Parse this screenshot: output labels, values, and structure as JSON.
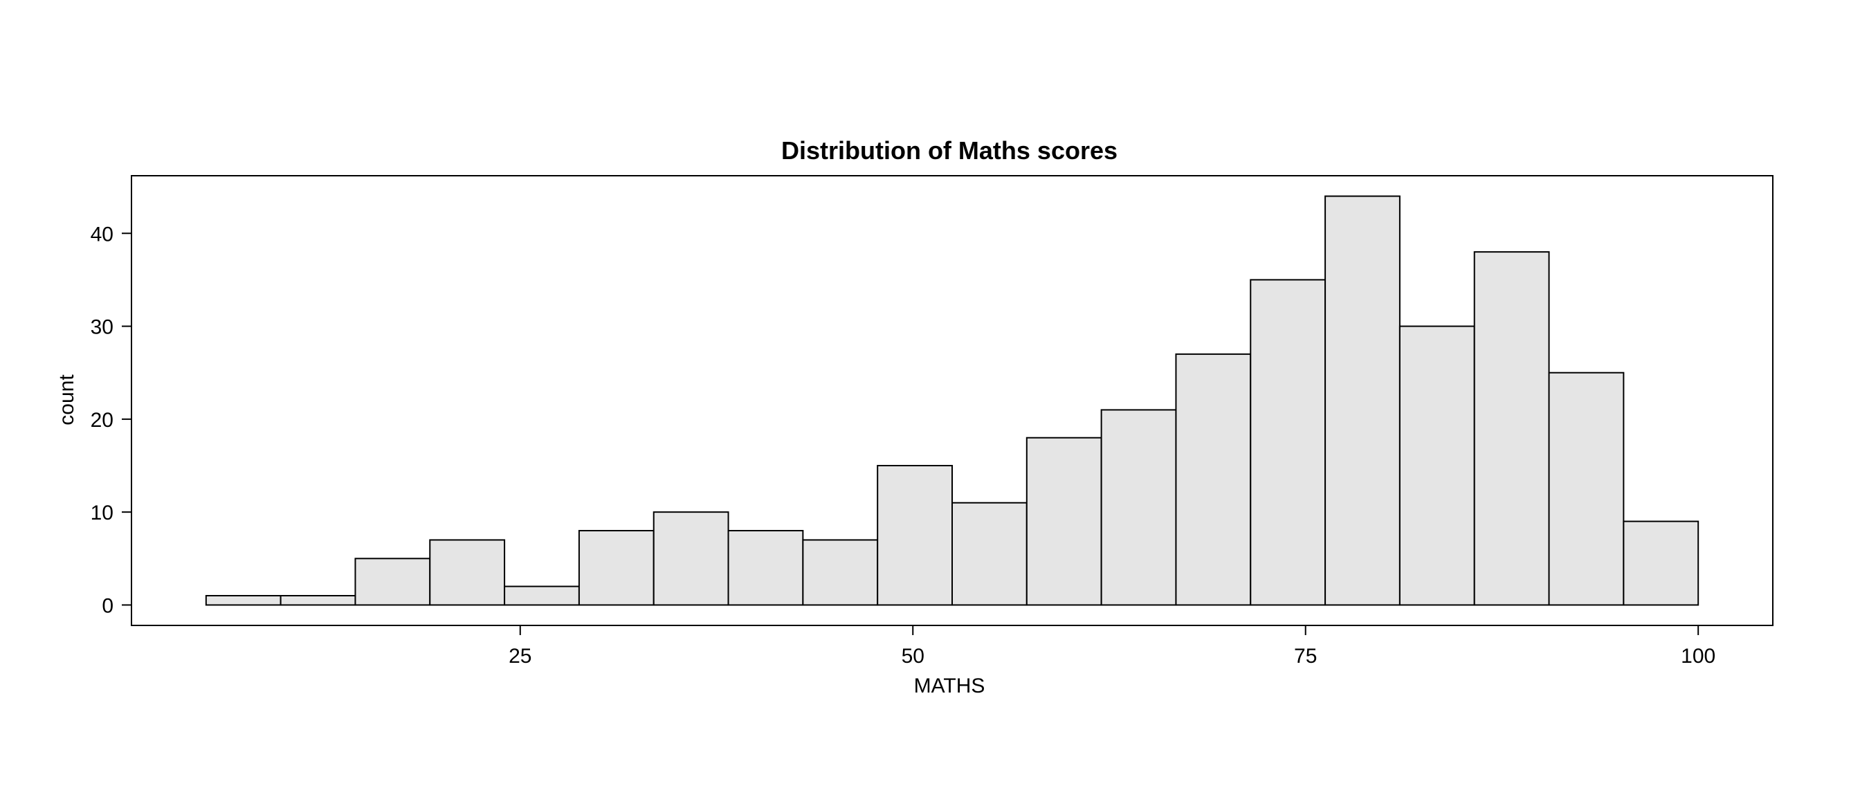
{
  "chart_data": {
    "type": "bar",
    "title": "Distribution of Maths scores",
    "xlabel": "MATHS",
    "ylabel": "count",
    "bin_width": 4.75,
    "bin_edges": [
      5,
      9.75,
      14.5,
      19.25,
      24,
      28.75,
      33.5,
      38.25,
      43,
      47.75,
      52.5,
      57.25,
      62,
      66.75,
      71.5,
      76.25,
      81,
      85.75,
      90.5,
      95.25,
      100
    ],
    "values": [
      1,
      1,
      5,
      7,
      2,
      8,
      10,
      8,
      7,
      15,
      11,
      18,
      21,
      27,
      35,
      44,
      30,
      38,
      25,
      9
    ],
    "xlim": [
      0.25,
      104.75
    ],
    "ylim": [
      -2.2,
      46.2
    ],
    "x_ticks": [
      25,
      50,
      75,
      100
    ],
    "x_tick_labels": [
      "25",
      "50",
      "75",
      "100"
    ],
    "y_ticks": [
      0,
      10,
      20,
      30,
      40
    ],
    "y_tick_labels": [
      "0",
      "10",
      "20",
      "30",
      "40"
    ],
    "grid": false,
    "colors": {
      "bar_fill": "#e5e5e5",
      "bar_stroke": "#000000"
    }
  }
}
